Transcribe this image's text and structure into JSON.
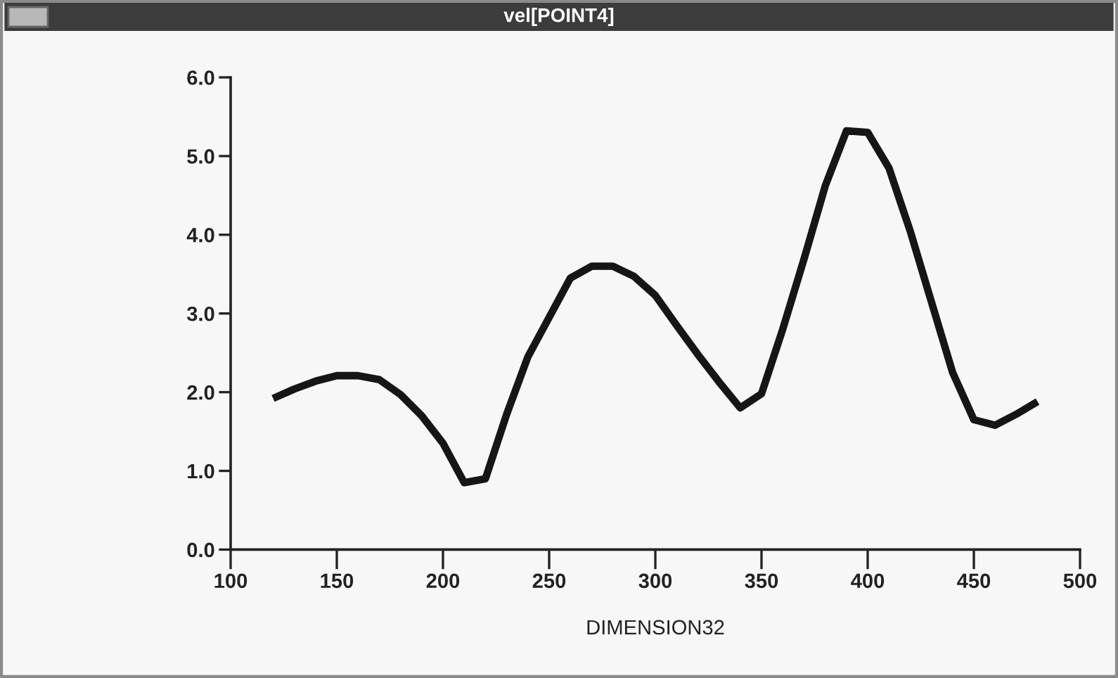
{
  "chart_data": {
    "type": "line",
    "title": "vel[POINT4]",
    "xlabel": "DIMENSION32",
    "x": [
      120,
      130,
      140,
      150,
      160,
      170,
      180,
      190,
      200,
      210,
      220,
      230,
      240,
      250,
      260,
      270,
      280,
      290,
      300,
      310,
      320,
      330,
      340,
      350,
      360,
      370,
      380,
      390,
      400,
      410,
      420,
      430,
      440,
      450,
      460,
      470,
      480
    ],
    "series": [
      {
        "color": "#161616",
        "values": [
          1.92,
          2.04,
          2.14,
          2.21,
          2.21,
          2.16,
          1.97,
          1.7,
          1.35,
          0.85,
          0.9,
          1.72,
          2.45,
          2.95,
          3.45,
          3.6,
          3.6,
          3.47,
          3.23,
          2.85,
          2.48,
          2.13,
          1.8,
          1.98,
          2.8,
          3.69,
          4.62,
          5.32,
          5.3,
          4.85,
          4.05,
          3.15,
          2.25,
          1.65,
          1.58,
          1.72,
          1.88
        ]
      }
    ],
    "xlim": [
      100,
      500
    ],
    "ylim": [
      0,
      6
    ],
    "xticks": [
      100,
      150,
      200,
      250,
      300,
      350,
      400,
      450,
      500
    ],
    "yticks": [
      {
        "value": 0,
        "label": "0.0"
      },
      {
        "value": 1,
        "label": "1.0"
      },
      {
        "value": 2,
        "label": "2.0"
      },
      {
        "value": 3,
        "label": "3.0"
      },
      {
        "value": 4,
        "label": "4.0"
      },
      {
        "value": 5,
        "label": "5.0"
      },
      {
        "value": 6,
        "label": "6.0"
      }
    ],
    "grid": false,
    "legend": false,
    "marker": "none",
    "line_style": "solid"
  }
}
